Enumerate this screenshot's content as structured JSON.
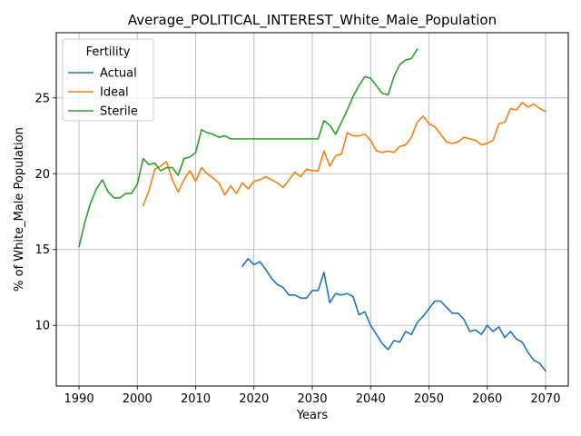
{
  "chart_data": {
    "type": "line",
    "title": "Average_POLITICAL_INTEREST_White_Male_Population",
    "xlabel": "Years",
    "ylabel": "% of White_Male Population",
    "xlim": [
      1986.1,
      2073.9
    ],
    "ylim": [
      6.0,
      29.3
    ],
    "xticks": [
      1990,
      2000,
      2010,
      2020,
      2030,
      2040,
      2050,
      2060,
      2070
    ],
    "yticks": [
      10,
      15,
      20,
      25
    ],
    "grid": true,
    "legend": {
      "title": "Fertility",
      "placement": "top-left"
    },
    "series": [
      {
        "name": "Actual",
        "color": "#1f77b4",
        "x": [
          2018,
          2019,
          2020,
          2021,
          2022,
          2023,
          2024,
          2025,
          2026,
          2027,
          2028,
          2029,
          2030,
          2031,
          2032,
          2033,
          2034,
          2035,
          2036,
          2037,
          2038,
          2039,
          2040,
          2041,
          2042,
          2043,
          2044,
          2045,
          2046,
          2047,
          2048,
          2049,
          2050,
          2051,
          2052,
          2053,
          2054,
          2055,
          2056,
          2057,
          2058,
          2059,
          2060,
          2061,
          2062,
          2063,
          2064,
          2065,
          2066,
          2067,
          2068,
          2069,
          2070
        ],
        "y": [
          13.9,
          14.4,
          14.0,
          14.2,
          13.7,
          13.1,
          12.7,
          12.5,
          12.0,
          12.0,
          11.8,
          11.8,
          12.3,
          12.3,
          13.5,
          11.5,
          12.1,
          12.0,
          12.1,
          11.9,
          10.7,
          10.9,
          10.0,
          9.4,
          8.8,
          8.4,
          9.0,
          8.9,
          9.6,
          9.4,
          10.2,
          10.6,
          11.1,
          11.6,
          11.6,
          11.2,
          10.8,
          10.8,
          10.4,
          9.6,
          9.7,
          9.4,
          10.0,
          9.6,
          9.9,
          9.2,
          9.6,
          9.1,
          8.9,
          8.2,
          7.7,
          7.5,
          7.0
        ]
      },
      {
        "name": "Ideal",
        "color": "#ff7f0e",
        "x": [
          2001,
          2002,
          2003,
          2004,
          2005,
          2006,
          2007,
          2008,
          2009,
          2010,
          2011,
          2012,
          2013,
          2014,
          2015,
          2016,
          2017,
          2018,
          2019,
          2020,
          2021,
          2022,
          2023,
          2024,
          2025,
          2026,
          2027,
          2028,
          2029,
          2030,
          2031,
          2032,
          2033,
          2034,
          2035,
          2036,
          2037,
          2038,
          2039,
          2040,
          2041,
          2042,
          2043,
          2044,
          2045,
          2046,
          2047,
          2048,
          2049,
          2050,
          2051,
          2052,
          2053,
          2054,
          2055,
          2056,
          2057,
          2058,
          2059,
          2060,
          2061,
          2062,
          2063,
          2064,
          2065,
          2066,
          2067,
          2068,
          2069,
          2070
        ],
        "y": [
          17.9,
          18.9,
          20.3,
          20.5,
          20.8,
          19.6,
          18.8,
          19.6,
          20.2,
          19.5,
          20.4,
          20.0,
          19.7,
          19.4,
          18.6,
          19.2,
          18.7,
          19.4,
          19.0,
          19.5,
          19.6,
          19.8,
          19.6,
          19.4,
          19.1,
          19.6,
          20.1,
          19.8,
          20.3,
          20.2,
          20.2,
          21.5,
          20.5,
          21.2,
          21.3,
          22.7,
          22.5,
          22.5,
          22.6,
          22.2,
          21.5,
          21.4,
          21.5,
          21.4,
          21.8,
          21.9,
          22.4,
          23.4,
          23.8,
          23.3,
          23.1,
          22.6,
          22.1,
          22.0,
          22.1,
          22.4,
          22.3,
          22.2,
          21.9,
          22.0,
          22.2,
          23.3,
          23.4,
          24.3,
          24.2,
          24.7,
          24.4,
          24.6,
          24.3,
          24.1
        ]
      },
      {
        "name": "Sterile",
        "color": "#2ca02c",
        "x": [
          1990,
          1991,
          1992,
          1993,
          1994,
          1995,
          1996,
          1997,
          1998,
          1999,
          2000,
          2001,
          2002,
          2003,
          2004,
          2005,
          2006,
          2007,
          2008,
          2009,
          2010,
          2011,
          2012,
          2013,
          2014,
          2015,
          2016,
          2017,
          2018,
          2019,
          2020,
          2021,
          2022,
          2023,
          2024,
          2025,
          2026,
          2027,
          2028,
          2029,
          2030,
          2031,
          2032,
          2033,
          2034,
          2035,
          2036,
          2037,
          2038,
          2039,
          2040,
          2041,
          2042,
          2043,
          2044,
          2045,
          2046,
          2047,
          2048
        ],
        "y": [
          15.2,
          16.8,
          18.1,
          19.0,
          19.6,
          18.8,
          18.4,
          18.4,
          18.7,
          18.7,
          19.3,
          21.0,
          20.6,
          20.7,
          20.2,
          20.4,
          20.4,
          19.9,
          21.0,
          21.1,
          21.4,
          22.9,
          22.7,
          22.6,
          22.4,
          22.5,
          22.3,
          22.3,
          22.3,
          22.3,
          22.3,
          22.3,
          22.3,
          22.3,
          22.3,
          22.3,
          22.3,
          22.3,
          22.3,
          22.3,
          22.3,
          22.3,
          23.5,
          23.2,
          22.6,
          23.4,
          24.2,
          25.1,
          25.8,
          26.4,
          26.3,
          25.8,
          25.3,
          25.2,
          26.4,
          27.2,
          27.5,
          27.6,
          28.2
        ]
      }
    ]
  }
}
